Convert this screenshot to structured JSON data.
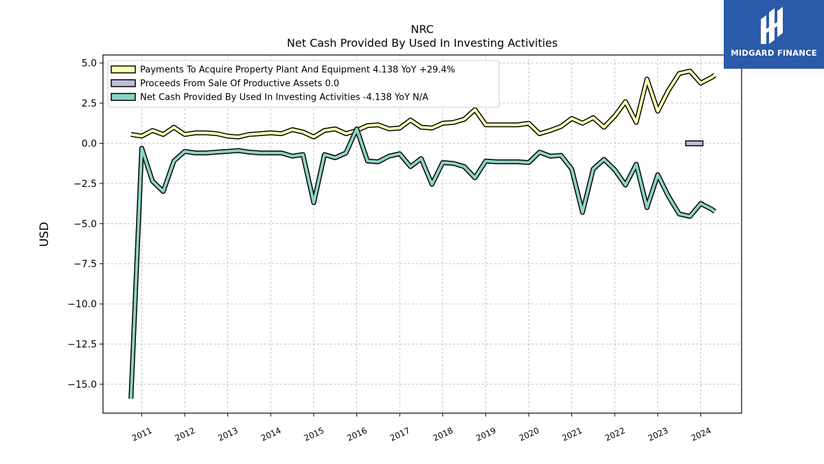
{
  "chart_data": {
    "type": "line",
    "title": "NRC",
    "subtitle": "Net Cash Provided By Used In Investing Activities",
    "ylabel": "USD",
    "ylim": [
      -16.8,
      5.5
    ],
    "yticks": [
      5.0,
      2.5,
      0.0,
      -2.5,
      -5.0,
      -7.5,
      -10.0,
      -12.5,
      -15.0
    ],
    "ytick_labels": [
      "5.0",
      "2.5",
      "0.0",
      "−2.5",
      "−5.0",
      "−7.5",
      "−10.0",
      "−12.5",
      "−15.0"
    ],
    "xlim": [
      2010.1,
      2024.95
    ],
    "xticks": [
      2011,
      2012,
      2013,
      2014,
      2015,
      2016,
      2017,
      2018,
      2019,
      2020,
      2021,
      2022,
      2023,
      2024
    ],
    "xtick_labels": [
      "2011",
      "2012",
      "2013",
      "2014",
      "2015",
      "2016",
      "2017",
      "2018",
      "2019",
      "2020",
      "2021",
      "2022",
      "2023",
      "2024"
    ],
    "grid": true,
    "legend_position": "top-left",
    "series": [
      {
        "name": "Payments To Acquire Property Plant And Equipment  4.138 YoY +29.4%",
        "color": "#ffffb3",
        "kind": "line",
        "points": [
          [
            2010.75,
            0.55
          ],
          [
            2011.0,
            0.45
          ],
          [
            2011.25,
            0.8
          ],
          [
            2011.5,
            0.55
          ],
          [
            2011.75,
            1.0
          ],
          [
            2012.0,
            0.55
          ],
          [
            2012.25,
            0.65
          ],
          [
            2012.5,
            0.65
          ],
          [
            2012.75,
            0.6
          ],
          [
            2013.0,
            0.45
          ],
          [
            2013.25,
            0.4
          ],
          [
            2013.5,
            0.55
          ],
          [
            2013.75,
            0.6
          ],
          [
            2014.0,
            0.65
          ],
          [
            2014.25,
            0.6
          ],
          [
            2014.5,
            0.85
          ],
          [
            2014.75,
            0.7
          ],
          [
            2015.0,
            0.4
          ],
          [
            2015.25,
            0.8
          ],
          [
            2015.5,
            0.9
          ],
          [
            2015.75,
            0.6
          ],
          [
            2016.0,
            0.8
          ],
          [
            2016.25,
            1.1
          ],
          [
            2016.5,
            1.15
          ],
          [
            2016.75,
            0.9
          ],
          [
            2017.0,
            0.95
          ],
          [
            2017.25,
            1.45
          ],
          [
            2017.5,
            1.0
          ],
          [
            2017.75,
            0.95
          ],
          [
            2018.0,
            1.25
          ],
          [
            2018.25,
            1.3
          ],
          [
            2018.5,
            1.5
          ],
          [
            2018.75,
            2.1
          ],
          [
            2019.0,
            1.15
          ],
          [
            2019.25,
            1.15
          ],
          [
            2019.5,
            1.15
          ],
          [
            2019.75,
            1.15
          ],
          [
            2020.0,
            1.25
          ],
          [
            2020.25,
            0.6
          ],
          [
            2020.5,
            0.8
          ],
          [
            2020.75,
            1.05
          ],
          [
            2021.0,
            1.55
          ],
          [
            2021.25,
            1.25
          ],
          [
            2021.5,
            1.6
          ],
          [
            2021.75,
            1.0
          ],
          [
            2022.0,
            1.7
          ],
          [
            2022.25,
            2.6
          ],
          [
            2022.5,
            1.3
          ],
          [
            2022.75,
            4.0
          ],
          [
            2023.0,
            2.0
          ],
          [
            2023.25,
            3.3
          ],
          [
            2023.5,
            4.35
          ],
          [
            2023.75,
            4.5
          ],
          [
            2024.0,
            3.75
          ],
          [
            2024.25,
            4.1
          ],
          [
            2024.33,
            4.25
          ]
        ]
      },
      {
        "name": "Proceeds From Sale Of Productive Assets  0.0",
        "color": "#bebada",
        "kind": "bar",
        "x0": 2023.65,
        "x1": 2024.05,
        "y0": -0.15,
        "y1": 0.15
      },
      {
        "name": "Net Cash Provided By Used In Investing Activities  -4.138 YoY N/A",
        "color": "#8dd3c7",
        "kind": "line",
        "points": [
          [
            2010.75,
            -15.9
          ],
          [
            2011.0,
            -0.3
          ],
          [
            2011.25,
            -2.35
          ],
          [
            2011.5,
            -3.0
          ],
          [
            2011.75,
            -1.1
          ],
          [
            2012.0,
            -0.5
          ],
          [
            2012.25,
            -0.6
          ],
          [
            2012.5,
            -0.6
          ],
          [
            2012.75,
            -0.55
          ],
          [
            2013.0,
            -0.5
          ],
          [
            2013.25,
            -0.45
          ],
          [
            2013.5,
            -0.55
          ],
          [
            2013.75,
            -0.6
          ],
          [
            2014.0,
            -0.6
          ],
          [
            2014.25,
            -0.6
          ],
          [
            2014.5,
            -0.8
          ],
          [
            2014.75,
            -0.7
          ],
          [
            2015.0,
            -3.7
          ],
          [
            2015.25,
            -0.7
          ],
          [
            2015.5,
            -0.9
          ],
          [
            2015.75,
            -0.6
          ],
          [
            2016.0,
            0.9
          ],
          [
            2016.25,
            -1.1
          ],
          [
            2016.5,
            -1.15
          ],
          [
            2016.75,
            -0.8
          ],
          [
            2017.0,
            -0.65
          ],
          [
            2017.25,
            -1.45
          ],
          [
            2017.5,
            -0.95
          ],
          [
            2017.75,
            -2.55
          ],
          [
            2018.0,
            -1.2
          ],
          [
            2018.25,
            -1.25
          ],
          [
            2018.5,
            -1.45
          ],
          [
            2018.75,
            -2.15
          ],
          [
            2019.0,
            -1.1
          ],
          [
            2019.25,
            -1.15
          ],
          [
            2019.5,
            -1.15
          ],
          [
            2019.75,
            -1.15
          ],
          [
            2020.0,
            -1.2
          ],
          [
            2020.25,
            -0.55
          ],
          [
            2020.5,
            -0.8
          ],
          [
            2020.75,
            -0.75
          ],
          [
            2021.0,
            -1.6
          ],
          [
            2021.25,
            -4.3
          ],
          [
            2021.5,
            -1.6
          ],
          [
            2021.75,
            -1.0
          ],
          [
            2022.0,
            -1.65
          ],
          [
            2022.25,
            -2.6
          ],
          [
            2022.5,
            -1.3
          ],
          [
            2022.75,
            -4.0
          ],
          [
            2023.0,
            -1.95
          ],
          [
            2023.25,
            -3.3
          ],
          [
            2023.5,
            -4.4
          ],
          [
            2023.75,
            -4.55
          ],
          [
            2024.0,
            -3.75
          ],
          [
            2024.25,
            -4.1
          ],
          [
            2024.33,
            -4.25
          ]
        ]
      }
    ]
  },
  "logo": {
    "text": "MIDGARD FINANCE",
    "icon": "midgard-logo-icon",
    "background": "#2b5aa8"
  }
}
